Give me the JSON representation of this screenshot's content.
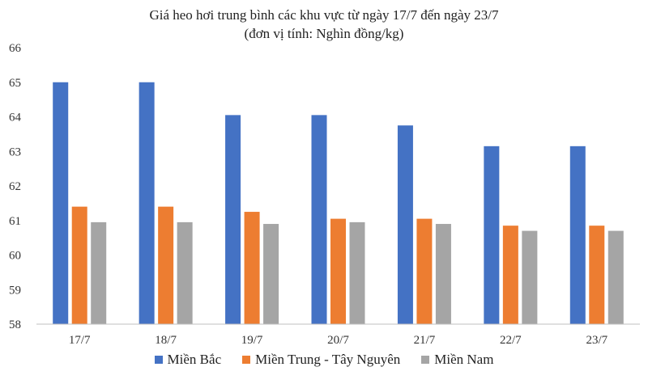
{
  "chart_data": {
    "type": "bar",
    "title": "Giá heo hơi trung bình các khu vực từ ngày 17/7 đến ngày 23/7",
    "subtitle": "(đơn vị tính: Nghìn đồng/kg)",
    "categories": [
      "17/7",
      "18/7",
      "19/7",
      "20/7",
      "21/7",
      "22/7",
      "23/7"
    ],
    "series": [
      {
        "name": "Miền Bắc",
        "color": "#4472c4",
        "values": [
          65,
          65,
          64.05,
          64.05,
          63.75,
          63.15,
          63.15
        ]
      },
      {
        "name": "Miền Trung - Tây Nguyên",
        "color": "#ed7d31",
        "values": [
          61.4,
          61.4,
          61.25,
          61.05,
          61.05,
          60.85,
          60.85
        ]
      },
      {
        "name": "Miền Nam",
        "color": "#a5a5a5",
        "values": [
          60.95,
          60.95,
          60.9,
          60.95,
          60.9,
          60.7,
          60.7
        ]
      }
    ],
    "ylim": [
      58,
      66
    ],
    "yticks": [
      58,
      59,
      60,
      61,
      62,
      63,
      64,
      65,
      66
    ],
    "xlabel": "",
    "ylabel": "",
    "grid": false,
    "legend": "bottom"
  }
}
